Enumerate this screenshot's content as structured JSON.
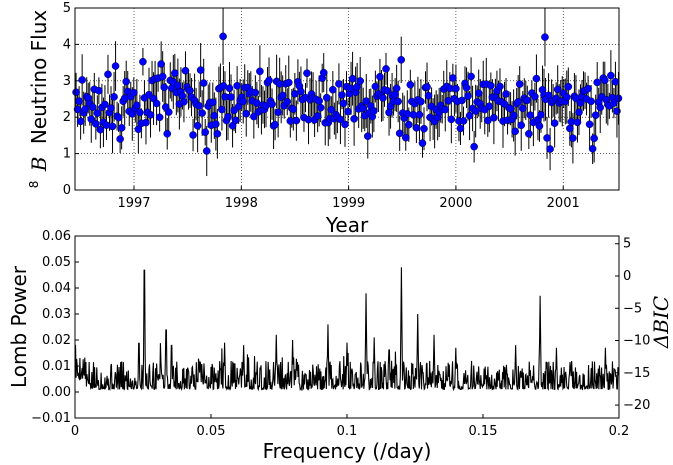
{
  "chart_data": [
    {
      "type": "scatter",
      "ylabel_superscript": "8",
      "ylabel_symbol": "B",
      "ylabel_text": "Neutrino Flux",
      "xlabel": "Year",
      "xlim": [
        1996.45,
        2001.52
      ],
      "ylim": [
        0,
        5
      ],
      "xticks": [
        1997,
        1998,
        1999,
        2000,
        2001
      ],
      "xtick_labels": [
        "1997",
        "1998",
        "1999",
        "2000",
        "2001"
      ],
      "yticks": [
        0,
        1,
        2,
        3,
        4,
        5
      ],
      "ytick_labels": [
        "0",
        "1",
        "2",
        "3",
        "4",
        "5"
      ],
      "grid": true,
      "marker_color": "#0000ff",
      "errorbar_color": "#000000",
      "n_points": 358,
      "seed": 17,
      "mean_flux": 2.35,
      "outliers": [
        {
          "x": 1997.83,
          "y": 4.22,
          "err": 0.78
        },
        {
          "x": 2000.83,
          "y": 4.2,
          "err": 0.8
        }
      ]
    },
    {
      "type": "line",
      "xlabel": "Frequency (/day)",
      "ylabel": "Lomb Power",
      "ylabel_right": "ΔBIC",
      "xlim": [
        0,
        0.2
      ],
      "ylim": [
        -0.01,
        0.06
      ],
      "ylim_right": [
        -22,
        6.2
      ],
      "xticks": [
        0,
        0.05,
        0.1,
        0.15,
        0.2
      ],
      "xtick_labels": [
        "0",
        "0.05",
        "0.1",
        "0.15",
        "0.2"
      ],
      "yticks": [
        -0.01,
        0,
        0.01,
        0.02,
        0.03,
        0.04,
        0.05,
        0.06
      ],
      "ytick_labels": [
        "−0.01",
        "0.00",
        "0.01",
        "0.02",
        "0.03",
        "0.04",
        "0.05",
        "0.06"
      ],
      "yticks_right": [
        5,
        0,
        -5,
        -10,
        -15,
        -20
      ],
      "ytick_labels_right": [
        "5",
        "0",
        "−5",
        "−10",
        "−15",
        "−20"
      ],
      "grid": false,
      "line_color": "#000000",
      "n_frequencies": 1000,
      "seed": 5,
      "peaks": [
        {
          "f": 0.0001,
          "p": 0.021
        },
        {
          "f": 0.0235,
          "p": 0.022
        },
        {
          "f": 0.0255,
          "p": 0.055
        },
        {
          "f": 0.0335,
          "p": 0.028
        },
        {
          "f": 0.0355,
          "p": 0.021
        },
        {
          "f": 0.055,
          "p": 0.019
        },
        {
          "f": 0.062,
          "p": 0.018
        },
        {
          "f": 0.074,
          "p": 0.022
        },
        {
          "f": 0.08,
          "p": 0.02
        },
        {
          "f": 0.093,
          "p": 0.026
        },
        {
          "f": 0.1,
          "p": 0.019
        },
        {
          "f": 0.107,
          "p": 0.038
        },
        {
          "f": 0.11,
          "p": 0.021
        },
        {
          "f": 0.1155,
          "p": 0.019
        },
        {
          "f": 0.12,
          "p": 0.048
        },
        {
          "f": 0.126,
          "p": 0.03
        },
        {
          "f": 0.132,
          "p": 0.022
        },
        {
          "f": 0.14,
          "p": 0.017
        },
        {
          "f": 0.162,
          "p": 0.018
        },
        {
          "f": 0.171,
          "p": 0.037
        },
        {
          "f": 0.177,
          "p": 0.017
        },
        {
          "f": 0.195,
          "p": 0.017
        }
      ]
    }
  ]
}
